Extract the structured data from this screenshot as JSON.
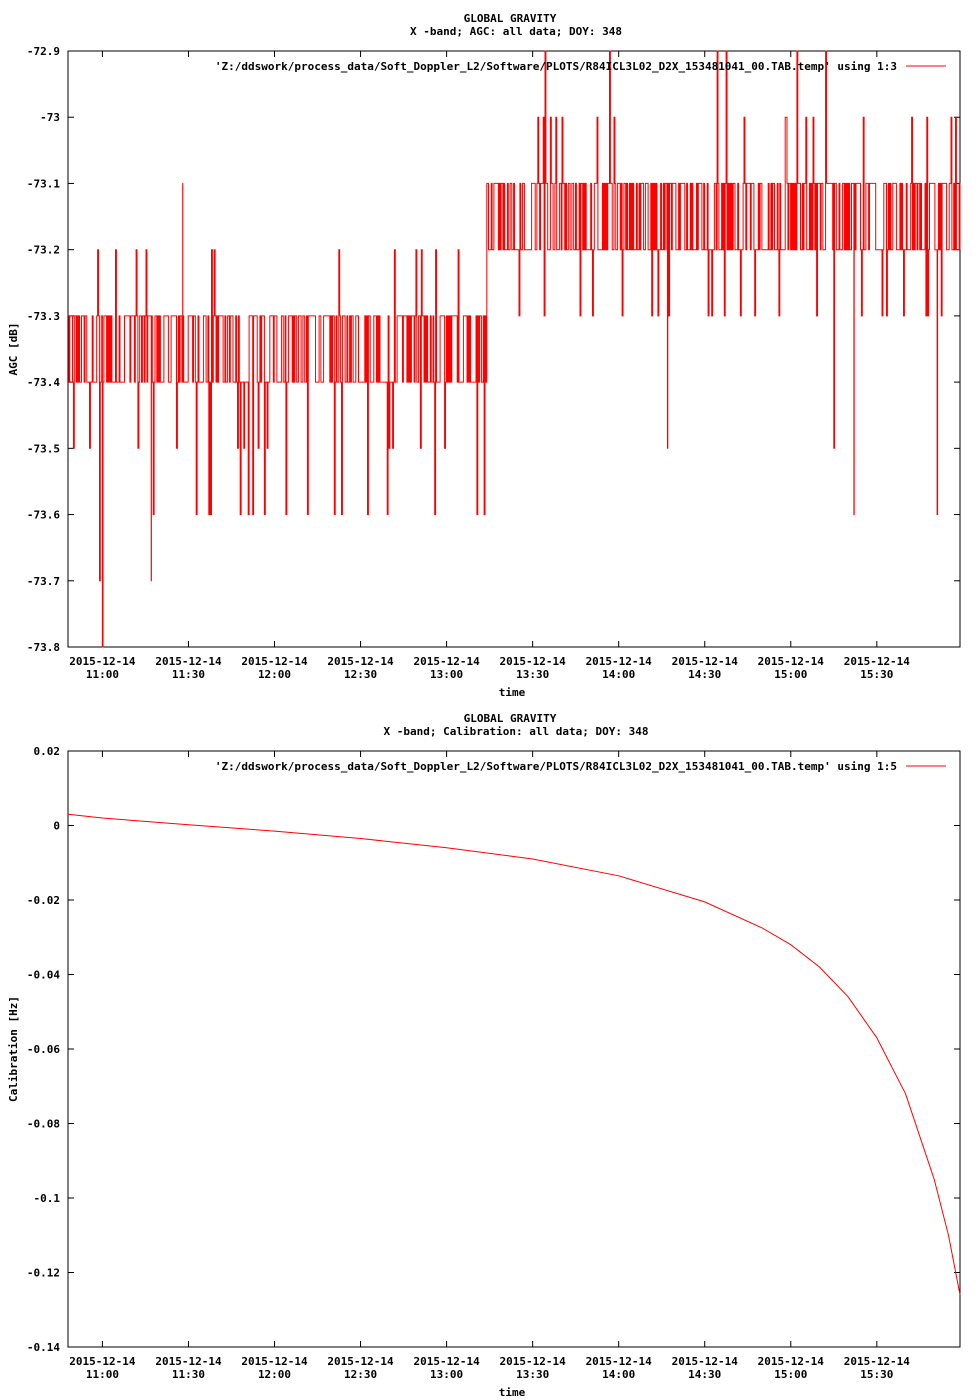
{
  "charts": [
    {
      "title": "GLOBAL GRAVITY",
      "subtitle": "X -band; AGC: all data; DOY: 348",
      "xlabel": "time",
      "ylabel": "AGC [dB]",
      "legend": "'Z:/ddswork/process_data/Soft_Doppler_L2/Software/PLOTS/R84ICL3L02_D2X_153481041_00.TAB.temp' using 1:3",
      "ytick_labels": [
        "-72.9",
        "-73",
        "-73.1",
        "-73.2",
        "-73.3",
        "-73.4",
        "-73.5",
        "-73.6",
        "-73.7",
        "-73.8"
      ],
      "xtick_dates": [
        "2015-12-14",
        "2015-12-14",
        "2015-12-14",
        "2015-12-14",
        "2015-12-14",
        "2015-12-14",
        "2015-12-14",
        "2015-12-14",
        "2015-12-14",
        "2015-12-14"
      ],
      "xtick_times": [
        "11:00",
        "11:30",
        "12:00",
        "12:30",
        "13:00",
        "13:30",
        "14:00",
        "14:30",
        "15:00",
        "15:30"
      ]
    },
    {
      "title": "GLOBAL GRAVITY",
      "subtitle": "X -band; Calibration: all data; DOY: 348",
      "xlabel": "time",
      "ylabel": "Calibration [Hz]",
      "legend": "'Z:/ddswork/process_data/Soft_Doppler_L2/Software/PLOTS/R84ICL3L02_D2X_153481041_00.TAB.temp' using 1:5",
      "ytick_labels": [
        "0.02",
        "0",
        "-0.02",
        "-0.04",
        "-0.06",
        "-0.08",
        "-0.1",
        "-0.12",
        "-0.14"
      ],
      "xtick_dates": [
        "2015-12-14",
        "2015-12-14",
        "2015-12-14",
        "2015-12-14",
        "2015-12-14",
        "2015-12-14",
        "2015-12-14",
        "2015-12-14",
        "2015-12-14",
        "2015-12-14"
      ],
      "xtick_times": [
        "11:00",
        "11:30",
        "12:00",
        "12:30",
        "13:00",
        "13:30",
        "14:00",
        "14:30",
        "15:00",
        "15:30"
      ]
    }
  ],
  "chart_data": [
    {
      "type": "line",
      "color": "#ff0000",
      "xlim": [
        "2015-12-14 10:48",
        "2015-12-14 15:59"
      ],
      "ylim": [
        -73.8,
        -72.9
      ],
      "yticks": [
        -72.9,
        -73,
        -73.1,
        -73.2,
        -73.3,
        -73.4,
        -73.5,
        -73.6,
        -73.7,
        -73.8
      ],
      "xticks": [
        "2015-12-14 11:00",
        "2015-12-14 11:30",
        "2015-12-14 12:00",
        "2015-12-14 12:30",
        "2015-12-14 13:00",
        "2015-12-14 13:30",
        "2015-12-14 14:00",
        "2015-12-14 14:30",
        "2015-12-14 15:00",
        "2015-12-14 15:30"
      ],
      "segments": [
        {
          "x_start": "2015-12-14 10:48",
          "x_end": "2015-12-14 13:14",
          "band": [
            -73.4,
            -73.3
          ],
          "range": [
            -73.6,
            -73.2
          ]
        },
        {
          "x_start": "2015-12-14 13:14",
          "x_end": "2015-12-14 15:59",
          "band": [
            -73.2,
            -73.1
          ],
          "range": [
            -73.3,
            -72.9
          ]
        }
      ],
      "extremes": [
        {
          "x": "2015-12-14 11:00",
          "y": -73.8
        },
        {
          "x": "2015-12-14 10:59",
          "y": -73.7
        },
        {
          "x": "2015-12-14 11:17",
          "y": -73.7
        },
        {
          "x": "2015-12-14 11:28",
          "y": -73.1
        },
        {
          "x": "2015-12-14 14:17",
          "y": -73.5
        },
        {
          "x": "2015-12-14 15:15",
          "y": -73.5
        },
        {
          "x": "2015-12-14 15:22",
          "y": -73.6
        },
        {
          "x": "2015-12-14 15:51",
          "y": -73.6
        }
      ],
      "grid": false,
      "legend_position": "top-right"
    },
    {
      "type": "line",
      "color": "#ff0000",
      "xlim": [
        "2015-12-14 10:48",
        "2015-12-14 15:59"
      ],
      "ylim": [
        -0.14,
        0.02
      ],
      "yticks": [
        0.02,
        0,
        -0.02,
        -0.04,
        -0.06,
        -0.08,
        -0.1,
        -0.12,
        -0.14
      ],
      "xticks": [
        "2015-12-14 11:00",
        "2015-12-14 11:30",
        "2015-12-14 12:00",
        "2015-12-14 12:30",
        "2015-12-14 13:00",
        "2015-12-14 13:30",
        "2015-12-14 14:00",
        "2015-12-14 14:30",
        "2015-12-14 15:00",
        "2015-12-14 15:30"
      ],
      "x": [
        "2015-12-14 10:48",
        "2015-12-14 11:00",
        "2015-12-14 11:30",
        "2015-12-14 12:00",
        "2015-12-14 12:30",
        "2015-12-14 13:00",
        "2015-12-14 13:30",
        "2015-12-14 14:00",
        "2015-12-14 14:30",
        "2015-12-14 14:50",
        "2015-12-14 15:00",
        "2015-12-14 15:10",
        "2015-12-14 15:20",
        "2015-12-14 15:30",
        "2015-12-14 15:40",
        "2015-12-14 15:50",
        "2015-12-14 15:55",
        "2015-12-14 15:59"
      ],
      "y": [
        0.003,
        0.002,
        0.0002,
        -0.0015,
        -0.0035,
        -0.006,
        -0.009,
        -0.0135,
        -0.0205,
        -0.0275,
        -0.032,
        -0.038,
        -0.046,
        -0.057,
        -0.072,
        -0.095,
        -0.11,
        -0.126
      ],
      "grid": false,
      "legend_position": "top-right"
    }
  ]
}
